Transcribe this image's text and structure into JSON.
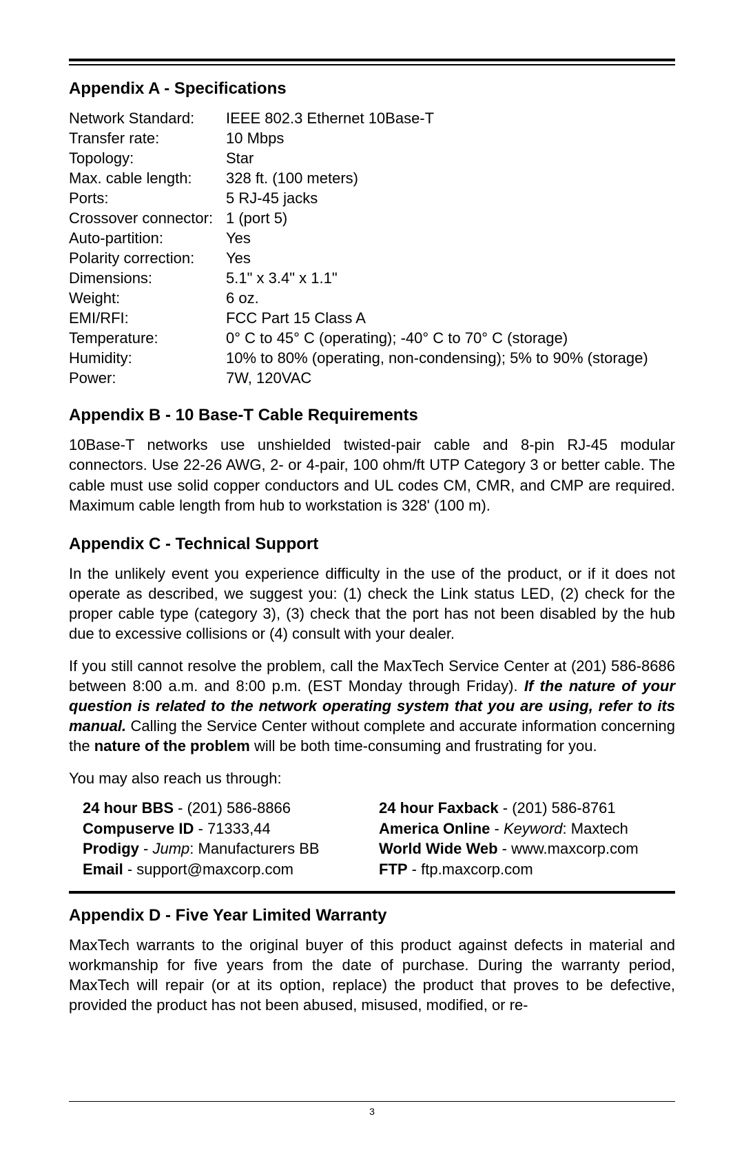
{
  "appendixA": {
    "heading": "Appendix A - Specifications",
    "rows": [
      {
        "label": "Network Standard:",
        "value": "IEEE 802.3 Ethernet 10Base-T"
      },
      {
        "label": "Transfer rate:",
        "value": "10 Mbps"
      },
      {
        "label": "Topology:",
        "value": "Star"
      },
      {
        "label": "Max. cable length:",
        "value": "328 ft. (100 meters)"
      },
      {
        "label": "Ports:",
        "value": "5 RJ-45 jacks"
      },
      {
        "label": "Crossover connector:",
        "value": "1 (port 5)"
      },
      {
        "label": "Auto-partition:",
        "value": "Yes"
      },
      {
        "label": "Polarity correction:",
        "value": "Yes"
      },
      {
        "label": "Dimensions:",
        "value": "5.1\" x 3.4\" x 1.1\""
      },
      {
        "label": "Weight:",
        "value": "6 oz."
      },
      {
        "label": "EMI/RFI:",
        "value": "FCC Part 15 Class A"
      },
      {
        "label": "Temperature:",
        "value": "0° C to 45° C (operating); -40° C to 70° C (storage)"
      },
      {
        "label": "Humidity:",
        "value": "10% to 80% (operating, non-condensing); 5% to 90% (storage)"
      },
      {
        "label": "Power:",
        "value": "7W, 120VAC"
      }
    ]
  },
  "appendixB": {
    "heading": "Appendix B - 10 Base-T Cable Requirements",
    "text": "10Base-T networks use unshielded twisted-pair cable and 8-pin RJ-45 modular connectors. Use 22-26 AWG, 2- or 4-pair, 100 ohm/ft UTP Category 3 or better cable. The cable must use solid copper conductors and UL codes CM, CMR, and CMP are required. Maximum cable length from hub to workstation is 328' (100 m)."
  },
  "appendixC": {
    "heading": "Appendix C - Technical Support",
    "para1": "In the unlikely event you experience difficulty in the use of the product, or if it does not operate as described, we suggest you: (1) check the Link status LED, (2) check for the proper cable type (category 3), (3) check that the port has not been disabled by the hub due to excessive collisions or (4) consult with your dealer.",
    "para2_pre": "If you still cannot resolve the problem, call the MaxTech Service Center at (201) 586-8686 between 8:00 a.m. and 8:00 p.m. (EST Monday through Friday). ",
    "para2_bolditalic": "If the nature of your question is related to the network operating system that you are using, refer to its manual.",
    "para2_mid": " Calling the Service Center without complete and accurate information concerning the ",
    "para2_bold": "nature of the problem",
    "para2_post": " will be both time-consuming and frustrating for you.",
    "para3": "You may also reach us through:",
    "contacts": {
      "bbs": {
        "label": "24 hour BBS",
        "value": " - (201) 586-8866"
      },
      "faxback": {
        "label": "24 hour Faxback",
        "value": " - (201) 586-8761"
      },
      "compuserve": {
        "label": "Compuserve ID",
        "value": " - 71333,44"
      },
      "aol": {
        "label": "America Online",
        "sep": " - ",
        "italic": "Keyword",
        "value": ": Maxtech"
      },
      "prodigy": {
        "label": "Prodigy",
        "sep": " - ",
        "italic": "Jump",
        "value": ": Manufacturers BB"
      },
      "www": {
        "label": "World Wide Web",
        "value": " - www.maxcorp.com"
      },
      "email": {
        "label": "Email",
        "value": " - support@maxcorp.com"
      },
      "ftp": {
        "label": "FTP",
        "value": " - ftp.maxcorp.com"
      }
    }
  },
  "appendixD": {
    "heading": "Appendix D - Five Year Limited Warranty",
    "text": "MaxTech warrants to the original buyer of this product against defects in material and workmanship for five years from the date of purchase. During the warranty period, MaxTech will repair (or at its option, replace) the product that proves to be defective, provided the product has not been abused, misused, modified, or re-"
  },
  "pageNumber": "3"
}
